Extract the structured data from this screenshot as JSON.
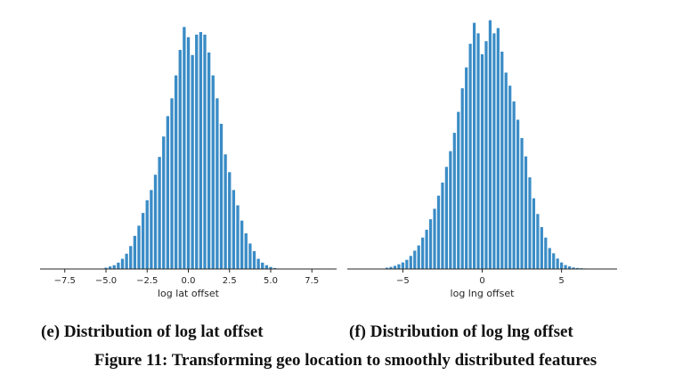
{
  "colors": {
    "bar": "#3a8cc6",
    "axis": "#262626"
  },
  "chart_data": [
    {
      "type": "bar",
      "xlabel": "log lat offset",
      "xlim": [
        -9,
        9
      ],
      "xticks": [
        -7.5,
        -5.0,
        -2.5,
        0.0,
        2.5,
        5.0,
        7.5
      ],
      "xtick_labels": [
        "−7.5",
        "−5.0",
        "−2.5",
        "0.0",
        "2.5",
        "5.0",
        "7.5"
      ],
      "bin_width": 0.25,
      "ylim": [
        0,
        1.0
      ],
      "x": [
        -5.0,
        -4.75,
        -4.5,
        -4.25,
        -4.0,
        -3.75,
        -3.5,
        -3.25,
        -3.0,
        -2.75,
        -2.5,
        -2.25,
        -2.0,
        -1.75,
        -1.5,
        -1.25,
        -1.0,
        -0.75,
        -0.5,
        -0.25,
        0.0,
        0.25,
        0.5,
        0.75,
        1.0,
        1.25,
        1.5,
        1.75,
        2.0,
        2.25,
        2.5,
        2.75,
        3.0,
        3.25,
        3.5,
        3.75,
        4.0,
        4.25,
        4.5,
        4.75,
        5.0,
        5.25
      ],
      "values": [
        0.005,
        0.01,
        0.015,
        0.025,
        0.04,
        0.06,
        0.09,
        0.13,
        0.17,
        0.22,
        0.27,
        0.31,
        0.37,
        0.44,
        0.52,
        0.6,
        0.67,
        0.76,
        0.86,
        0.95,
        0.91,
        0.84,
        0.92,
        0.93,
        0.92,
        0.85,
        0.76,
        0.67,
        0.57,
        0.45,
        0.38,
        0.31,
        0.25,
        0.19,
        0.14,
        0.1,
        0.07,
        0.04,
        0.025,
        0.015,
        0.008,
        0.004
      ]
    },
    {
      "type": "bar",
      "xlabel": "log lng offset",
      "xlim": [
        -8.5,
        8.5
      ],
      "xticks": [
        -5,
        0,
        5
      ],
      "xtick_labels": [
        "−5",
        "0",
        "5"
      ],
      "bin_width": 0.25,
      "ylim": [
        0,
        1.0
      ],
      "x": [
        -6.0,
        -5.75,
        -5.5,
        -5.25,
        -5.0,
        -4.75,
        -4.5,
        -4.25,
        -4.0,
        -3.75,
        -3.5,
        -3.25,
        -3.0,
        -2.75,
        -2.5,
        -2.25,
        -2.0,
        -1.75,
        -1.5,
        -1.25,
        -1.0,
        -0.75,
        -0.5,
        -0.25,
        0.0,
        0.25,
        0.5,
        0.75,
        1.0,
        1.25,
        1.5,
        1.75,
        2.0,
        2.25,
        2.5,
        2.75,
        3.0,
        3.25,
        3.5,
        3.75,
        4.0,
        4.25,
        4.5,
        4.75,
        5.0,
        5.25,
        5.5,
        5.75,
        6.0,
        6.25,
        6.5
      ],
      "values": [
        0.005,
        0.008,
        0.012,
        0.018,
        0.025,
        0.035,
        0.05,
        0.07,
        0.09,
        0.12,
        0.15,
        0.19,
        0.23,
        0.28,
        0.33,
        0.39,
        0.45,
        0.52,
        0.6,
        0.69,
        0.77,
        0.86,
        0.94,
        0.9,
        0.82,
        0.87,
        0.95,
        0.9,
        0.92,
        0.83,
        0.75,
        0.7,
        0.64,
        0.57,
        0.5,
        0.43,
        0.35,
        0.27,
        0.21,
        0.16,
        0.12,
        0.08,
        0.06,
        0.04,
        0.025,
        0.015,
        0.01,
        0.006,
        0.004,
        0.003,
        0.002
      ]
    }
  ],
  "captions": {
    "sub_e": "(e) Distribution of log lat offset",
    "sub_f": "(f) Distribution of log lng offset",
    "figure": "Figure 11: Transforming geo location to smoothly distributed features"
  }
}
